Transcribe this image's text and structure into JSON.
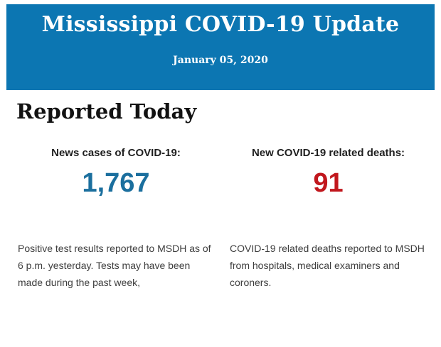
{
  "banner": {
    "title": "Mississippi COVID-19 Update",
    "date": "January 05, 2020",
    "background_color": "#0c76b2",
    "text_color": "#ffffff"
  },
  "section": {
    "heading": "Reported Today"
  },
  "stats": [
    {
      "label": "News cases of COVID-19:",
      "value": "1,767",
      "value_color": "#1b6f9e",
      "description": "Positive test results reported to MSDH as of 6 p.m. yesterday. Tests may have been made during the past week,"
    },
    {
      "label": "New COVID-19 related deaths:",
      "value": "91",
      "value_color": "#c1171d",
      "description": "COVID-19 related deaths reported to MSDH from hospitals, medical examiners and coroners."
    }
  ]
}
